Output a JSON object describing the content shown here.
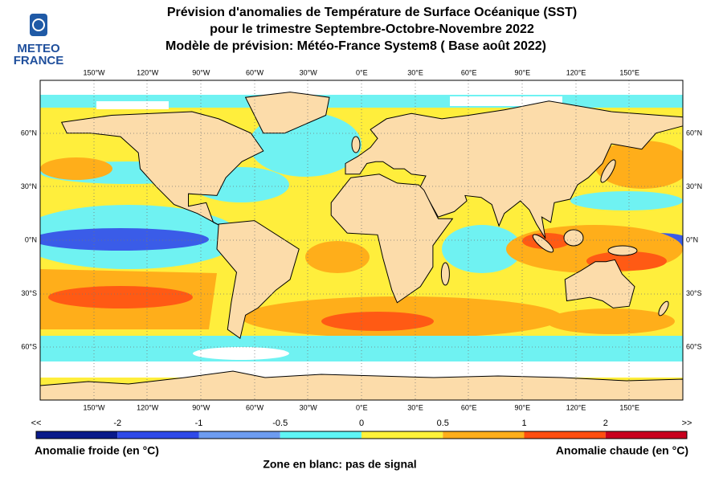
{
  "logo": {
    "line1": "METEO",
    "line2": "FRANCE"
  },
  "header": {
    "title": [
      "Prévision d'anomalies de Température de Surface Océanique (SST)",
      "pour le trimestre Septembre-Octobre-Novembre 2022",
      "Modèle de prévision: Météo-France System8 ( Base août 2022)"
    ]
  },
  "map": {
    "lon_labels": [
      "150°W",
      "120°W",
      "90°W",
      "60°W",
      "30°W",
      "0°E",
      "30°E",
      "60°E",
      "90°E",
      "120°E",
      "150°E"
    ],
    "lat_labels": [
      "60°N",
      "30°N",
      "0°N",
      "30°S",
      "60°S"
    ]
  },
  "colorbar": {
    "labels": [
      "<<",
      "-2",
      "-1",
      "-0.5",
      "0",
      "0.5",
      "1",
      "2",
      ">>"
    ]
  },
  "legend": {
    "cold": "Anomalie froide (en °C)",
    "warm": "Anomalie chaude (en °C)",
    "note": "Zone en blanc: pas de signal"
  }
}
